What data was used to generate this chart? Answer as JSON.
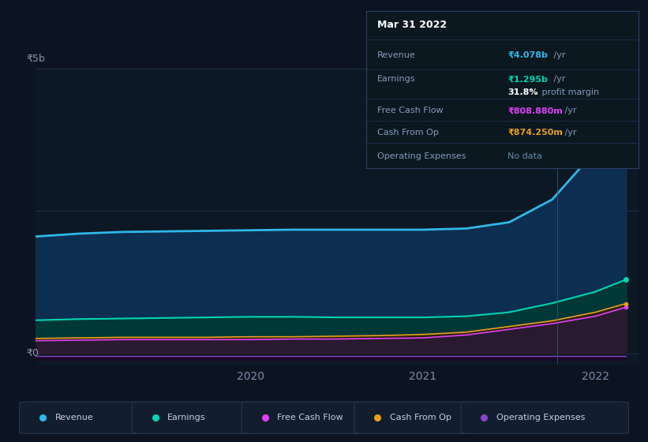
{
  "bg_color": "#0d1421",
  "plot_bg_color": "#0d1825",
  "title": "Mar 31 2022",
  "x": [
    2018.75,
    2019.0,
    2019.25,
    2019.5,
    2019.75,
    2020.0,
    2020.25,
    2020.5,
    2020.75,
    2021.0,
    2021.25,
    2021.5,
    2021.75,
    2022.0,
    2022.18
  ],
  "revenue": [
    2.05,
    2.1,
    2.13,
    2.14,
    2.15,
    2.16,
    2.17,
    2.17,
    2.17,
    2.17,
    2.19,
    2.3,
    2.7,
    3.55,
    4.078
  ],
  "earnings": [
    0.58,
    0.6,
    0.61,
    0.62,
    0.63,
    0.64,
    0.64,
    0.63,
    0.63,
    0.63,
    0.65,
    0.72,
    0.88,
    1.08,
    1.295
  ],
  "free_cash_flow": [
    0.22,
    0.23,
    0.24,
    0.24,
    0.24,
    0.24,
    0.25,
    0.25,
    0.26,
    0.27,
    0.32,
    0.42,
    0.52,
    0.65,
    0.809
  ],
  "cash_from_op": [
    0.26,
    0.27,
    0.28,
    0.28,
    0.28,
    0.29,
    0.29,
    0.3,
    0.31,
    0.33,
    0.37,
    0.47,
    0.57,
    0.72,
    0.874
  ],
  "operating_expenses": [
    -0.05,
    -0.05,
    -0.05,
    -0.05,
    -0.05,
    -0.05,
    -0.05,
    -0.05,
    -0.05,
    -0.05,
    -0.05,
    -0.05,
    -0.05,
    -0.05,
    -0.05
  ],
  "revenue_color": "#2fb8e8",
  "earnings_color": "#00d4b0",
  "fcf_color": "#e040fb",
  "cfop_color": "#e8a020",
  "opex_color": "#8844cc",
  "revenue_fill": "#0a2a4a",
  "earnings_fill": "#003535",
  "fcf_fill": "#3a2840",
  "cfop_fill": "#3a2a05",
  "ylabel_5b": "₹5b",
  "ylabel_0": "₹0",
  "xticks": [
    2020,
    2021,
    2022
  ],
  "xlim": [
    2018.75,
    2022.25
  ],
  "ylim": [
    -0.2,
    5.0
  ],
  "vertical_line_x": 2021.78,
  "legend_items": [
    "Revenue",
    "Earnings",
    "Free Cash Flow",
    "Cash From Op",
    "Operating Expenses"
  ],
  "legend_colors": [
    "#2fb8e8",
    "#00d4b0",
    "#e040fb",
    "#e8a020",
    "#8844cc"
  ],
  "tooltip_rows": [
    {
      "label": "Revenue",
      "value": "₹4.078b",
      "suffix": " /yr",
      "value_color": "#2fb8e8",
      "extra": null
    },
    {
      "label": "Earnings",
      "value": "₹1.295b",
      "suffix": " /yr",
      "value_color": "#00d4b0",
      "extra": "31.8% profit margin"
    },
    {
      "label": "Free Cash Flow",
      "value": "₹808.880m",
      "suffix": " /yr",
      "value_color": "#e040fb",
      "extra": null
    },
    {
      "label": "Cash From Op",
      "value": "₹874.250m",
      "suffix": " /yr",
      "value_color": "#e8a020",
      "extra": null
    },
    {
      "label": "Operating Expenses",
      "value": "No data",
      "suffix": "",
      "value_color": "#6a8aaa",
      "extra": null
    }
  ]
}
